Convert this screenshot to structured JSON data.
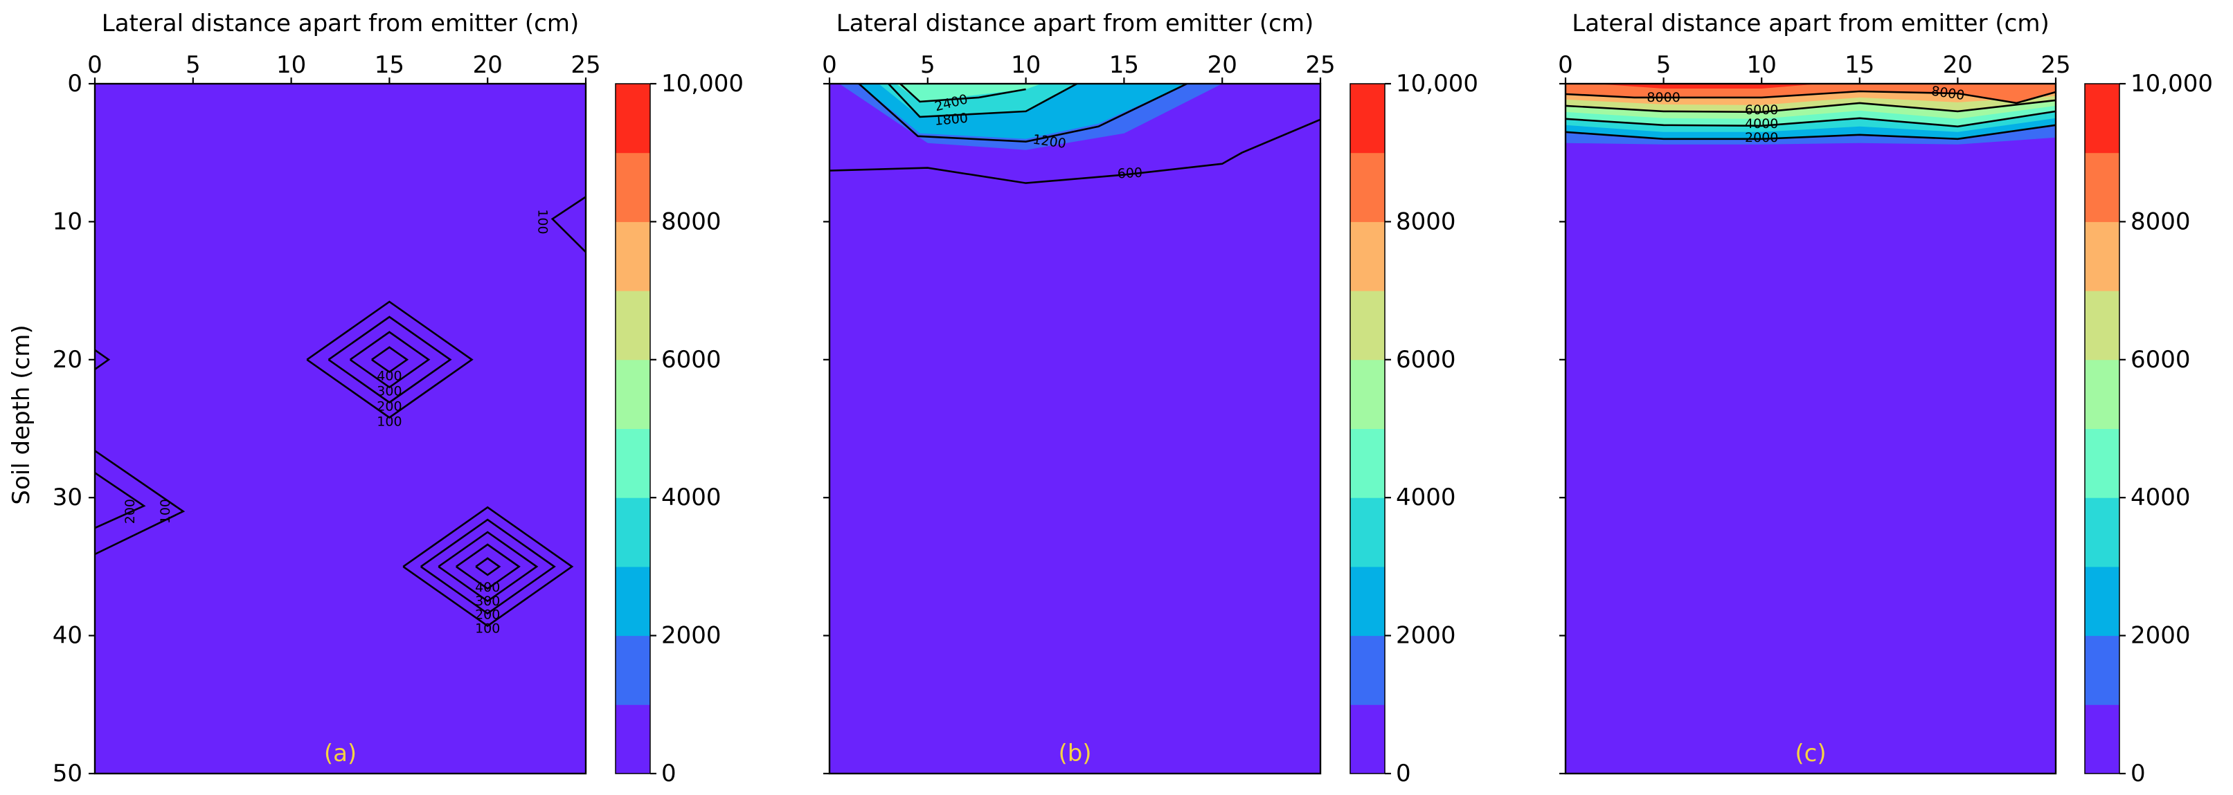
{
  "figure": {
    "ylabel": "Soil depth (cm)",
    "colorbar": {
      "ticks": [
        "0",
        "2000",
        "4000",
        "6000",
        "8000",
        "10,000"
      ],
      "tick_values": [
        0,
        2000,
        4000,
        6000,
        8000,
        10000
      ],
      "levels": [
        0,
        1000,
        2000,
        3000,
        4000,
        5000,
        6000,
        7000,
        8000,
        9000,
        10000
      ],
      "colors": [
        "#6a23fc",
        "#3a6cf5",
        "#04b0e6",
        "#2ad9d8",
        "#6cfac6",
        "#a2f9a2",
        "#cde283",
        "#fdb469",
        "#fe7742",
        "#fe2b1c"
      ]
    }
  },
  "chart_data": [
    {
      "type": "heatmap",
      "panel_label": "(a)",
      "xlabel": "Lateral distance apart from emitter (cm)",
      "xlim": [
        0,
        25
      ],
      "ylim": [
        50,
        0
      ],
      "x_ticks": [
        "0",
        "5",
        "10",
        "15",
        "20",
        "25"
      ],
      "y_ticks": [
        "0",
        "10",
        "20",
        "30",
        "40",
        "50"
      ],
      "background_level": 0,
      "contour_labels": [
        {
          "text": "400",
          "x": 15,
          "y": 21.2
        },
        {
          "text": "300",
          "x": 15,
          "y": 22.3
        },
        {
          "text": "200",
          "x": 15,
          "y": 23.4
        },
        {
          "text": "100",
          "x": 15,
          "y": 24.5
        },
        {
          "text": "400",
          "x": 20,
          "y": 36.5
        },
        {
          "text": "300",
          "x": 20,
          "y": 37.5
        },
        {
          "text": "200",
          "x": 20,
          "y": 38.5
        },
        {
          "text": "100",
          "x": 20,
          "y": 39.5
        },
        {
          "text": "200",
          "x": 1.8,
          "y": 31,
          "rotate": -90
        },
        {
          "text": "100",
          "x": 3.6,
          "y": 31,
          "rotate": -90
        },
        {
          "text": "100",
          "x": 22.8,
          "y": 10,
          "rotate": 90
        }
      ]
    },
    {
      "type": "heatmap",
      "panel_label": "(b)",
      "xlabel": "Lateral distance apart from emitter (cm)",
      "xlim": [
        0,
        25
      ],
      "ylim": [
        50,
        0
      ],
      "x_ticks": [
        "0",
        "5",
        "10",
        "15",
        "20",
        "25"
      ],
      "y_ticks": [
        "0",
        "10",
        "20",
        "30",
        "40",
        "50"
      ],
      "background_level": 0,
      "contour_labels": [
        {
          "text": "2400",
          "x": 6.2,
          "y": 1.4,
          "rotate": -14
        },
        {
          "text": "1800",
          "x": 6.2,
          "y": 2.6,
          "rotate": -5
        },
        {
          "text": "1200",
          "x": 11.2,
          "y": 4.2,
          "rotate": 8
        },
        {
          "text": "600",
          "x": 15.3,
          "y": 6.5,
          "rotate": -3
        }
      ]
    },
    {
      "type": "heatmap",
      "panel_label": "(c)",
      "xlabel": "Lateral distance apart from emitter (cm)",
      "xlim": [
        0,
        25
      ],
      "ylim": [
        50,
        0
      ],
      "x_ticks": [
        "0",
        "5",
        "10",
        "15",
        "20",
        "25"
      ],
      "y_ticks": [
        "0",
        "10",
        "20",
        "30",
        "40",
        "50"
      ],
      "background_level": 0,
      "contour_labels": [
        {
          "text": "8000",
          "x": 5,
          "y": 1.0
        },
        {
          "text": "8000",
          "x": 19.5,
          "y": 0.7,
          "rotate": 8
        },
        {
          "text": "6000",
          "x": 10,
          "y": 1.9
        },
        {
          "text": "4000",
          "x": 10,
          "y": 2.9
        },
        {
          "text": "2000",
          "x": 10,
          "y": 3.9
        }
      ]
    }
  ]
}
